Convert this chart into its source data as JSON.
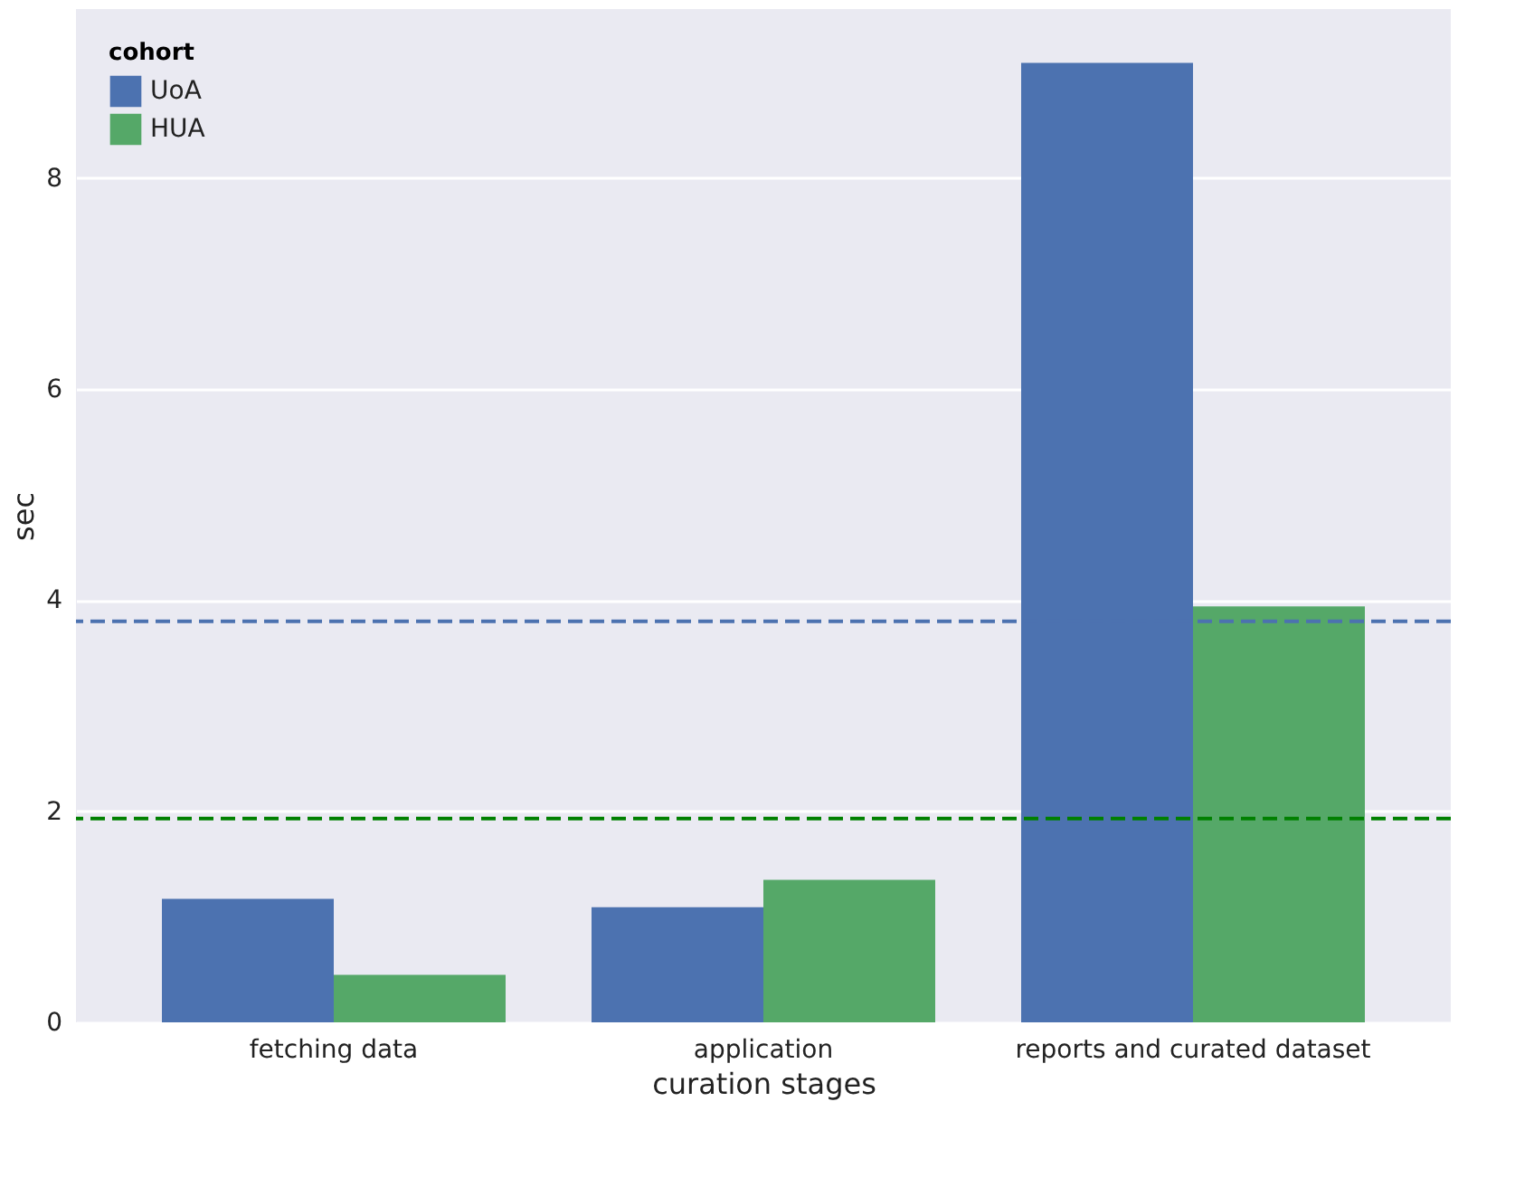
{
  "chart_data": {
    "type": "bar",
    "xlabel": "curation stages",
    "ylabel": "sec",
    "legend_title": "cohort",
    "categories": [
      "fetching data",
      "application",
      "reports and curated dataset"
    ],
    "series": [
      {
        "name": "UoA",
        "color": "#4c72b0",
        "values": [
          1.17,
          1.09,
          9.09
        ]
      },
      {
        "name": "HUA",
        "color": "#55a868",
        "values": [
          0.45,
          1.35,
          3.94
        ]
      }
    ],
    "ylim": [
      0,
      9.6
    ],
    "yticks": [
      0,
      2,
      4,
      6,
      8
    ],
    "grid": "y",
    "legend": "top left",
    "ref_lines": [
      {
        "axis": "y",
        "value": 3.8,
        "color": "#4c72b0",
        "line_style": "dashed"
      },
      {
        "axis": "y",
        "value": 1.93,
        "color": "#008000",
        "line_style": "dashed"
      }
    ]
  }
}
